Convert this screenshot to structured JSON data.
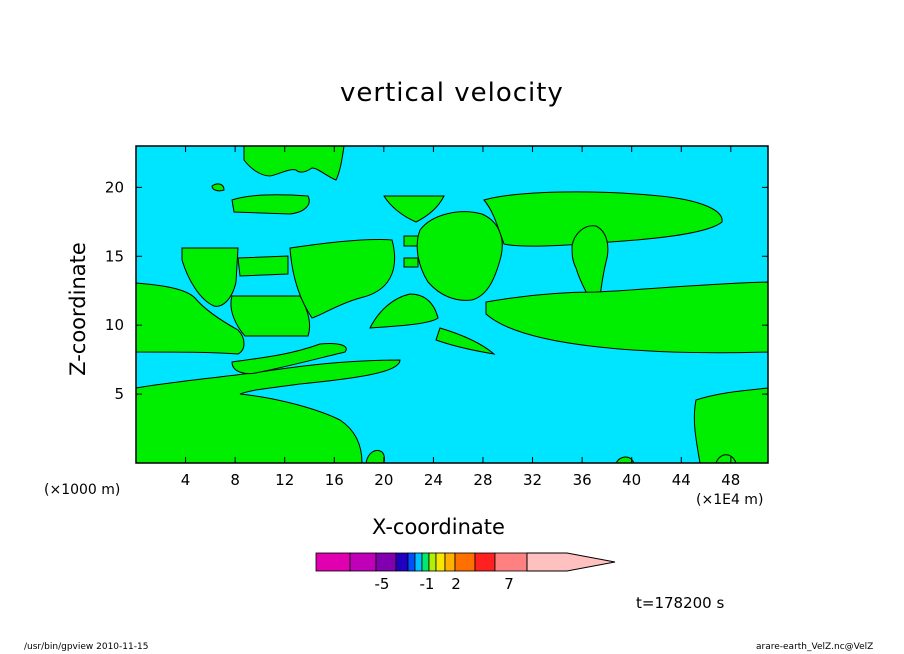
{
  "title": "vertical velocity",
  "chart_data": {
    "type": "heatmap",
    "title": "vertical velocity",
    "xlabel": "X-coordinate",
    "ylabel": "Z-coordinate",
    "x_unit_note": "(×1000 m)",
    "x_unit_note2": "(×1E4 m)",
    "xlim": [
      0,
      51
    ],
    "ylim": [
      0,
      23
    ],
    "x_ticks": [
      4,
      8,
      12,
      16,
      20,
      24,
      28,
      32,
      36,
      40,
      44,
      48
    ],
    "y_ticks": [
      5,
      10,
      15,
      20
    ],
    "background_level": "-1 to 0",
    "colors": {
      "background": "#00e5ff",
      "positive": "#00ee00",
      "contour": "#000000"
    },
    "colorbar": {
      "colors": [
        "#e000b0",
        "#c000b8",
        "#8000b0",
        "#2000c0",
        "#0050ff",
        "#00c0ff",
        "#00e870",
        "#b0f000",
        "#f8e800",
        "#ffb000",
        "#ff7000",
        "#ff2020",
        "#ff8080",
        "#ffc0c0"
      ],
      "tick_labels": [
        "-5",
        "-1",
        "2",
        "7"
      ]
    }
  },
  "time_label": "t=178200 s",
  "footer_left": "/usr/bin/gpview   2010-11-15",
  "footer_right": "arare-earth_VelZ.nc@VelZ"
}
